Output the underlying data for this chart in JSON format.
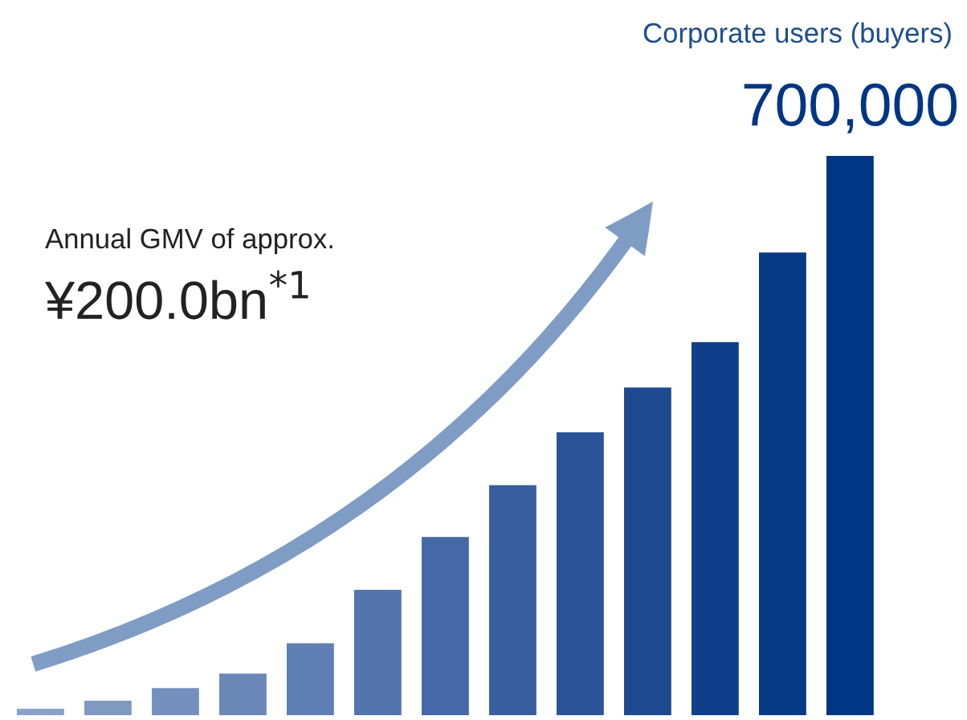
{
  "chart_data": {
    "type": "bar",
    "title": "Corporate users (buyers)",
    "categories": [
      null,
      null,
      null,
      null,
      null,
      null,
      null,
      null,
      null,
      null,
      null,
      null,
      null
    ],
    "values": [
      8000,
      18000,
      34000,
      52000,
      90000,
      157000,
      223000,
      288000,
      354000,
      410000,
      467000,
      579000,
      700000
    ],
    "colors": [
      "#8aa2c8",
      "#7f99c3",
      "#7590be",
      "#6a87b8",
      "#5f7eb3",
      "#5374ad",
      "#4569a6",
      "#375e9f",
      "#2a5398",
      "#1d4991",
      "#0f3f8b",
      "#063986",
      "#003684"
    ],
    "value_labels": [
      null,
      null,
      null,
      null,
      null,
      null,
      null,
      null,
      null,
      null,
      null,
      null,
      "700,000"
    ],
    "annotations": [
      "Annual GMV of approx.",
      "¥200.0bn$^{*1}$"
    ]
  }
}
